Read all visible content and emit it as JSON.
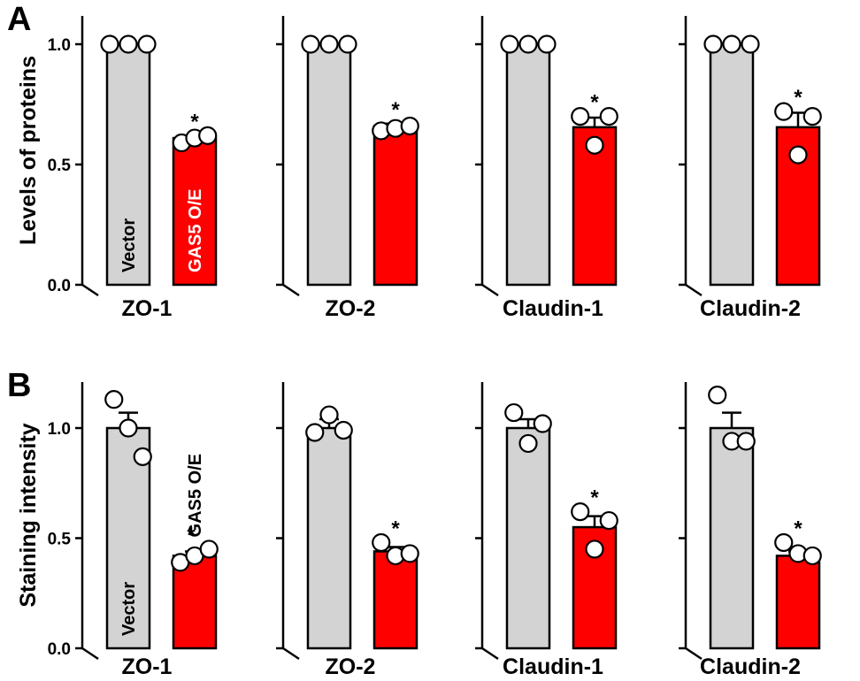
{
  "colors": {
    "vector": "#d3d3d3",
    "gas5": "#ff0000",
    "axis": "#000000"
  },
  "chart_data": [
    {
      "panel": "A",
      "type": "bar",
      "ylabel": "Levels of proteins",
      "ylim": [
        0,
        1.2
      ],
      "yticks": [
        0.0,
        0.5,
        1.0
      ],
      "yticklabels": [
        "0.0",
        "0.5",
        "1.0"
      ],
      "bar_labels": {
        "vector": "Vector",
        "gas5": "GAS5 O/E"
      },
      "subplots": [
        {
          "title": "ZO-1",
          "series": [
            {
              "name": "Vector",
              "value": 1.0,
              "error": 0,
              "points": [
                1.0,
                1.0,
                1.0
              ]
            },
            {
              "name": "GAS5 O/E",
              "value": 0.61,
              "error": 0.01,
              "points": [
                0.59,
                0.61,
                0.62
              ],
              "significant": true
            }
          ]
        },
        {
          "title": "ZO-2",
          "series": [
            {
              "name": "Vector",
              "value": 1.0,
              "error": 0,
              "points": [
                1.0,
                1.0,
                1.0
              ]
            },
            {
              "name": "GAS5 O/E",
              "value": 0.66,
              "error": 0.01,
              "points": [
                0.64,
                0.65,
                0.66
              ],
              "significant": true
            }
          ]
        },
        {
          "title": "Claudin-1",
          "series": [
            {
              "name": "Vector",
              "value": 1.0,
              "error": 0,
              "points": [
                1.0,
                1.0,
                1.0
              ]
            },
            {
              "name": "GAS5 O/E",
              "value": 0.655,
              "error": 0.04,
              "points": [
                0.7,
                0.58,
                0.7
              ],
              "significant": true
            }
          ]
        },
        {
          "title": "Claudin-2",
          "series": [
            {
              "name": "Vector",
              "value": 1.0,
              "error": 0,
              "points": [
                1.0,
                1.0,
                1.0
              ]
            },
            {
              "name": "GAS5 O/E",
              "value": 0.655,
              "error": 0.06,
              "points": [
                0.72,
                0.54,
                0.7
              ],
              "significant": true
            }
          ]
        }
      ]
    },
    {
      "panel": "B",
      "type": "bar",
      "ylabel": "Staining intensity",
      "ylim": [
        0,
        1.2
      ],
      "yticks": [
        0.0,
        0.5,
        1.0
      ],
      "yticklabels": [
        "0.0",
        "0.5",
        "1.0"
      ],
      "bar_labels": {
        "vector": "Vector",
        "gas5": "GAS5 O/E"
      },
      "subplots": [
        {
          "title": "ZO-1",
          "series": [
            {
              "name": "Vector",
              "value": 1.0,
              "error": 0.07,
              "points": [
                1.13,
                1.0,
                0.87
              ]
            },
            {
              "name": "GAS5 O/E",
              "value": 0.42,
              "error": 0.02,
              "points": [
                0.39,
                0.42,
                0.45
              ],
              "significant": true
            }
          ]
        },
        {
          "title": "ZO-2",
          "series": [
            {
              "name": "Vector",
              "value": 1.0,
              "error": 0.04,
              "points": [
                0.98,
                1.06,
                0.99
              ]
            },
            {
              "name": "GAS5 O/E",
              "value": 0.44,
              "error": 0.02,
              "points": [
                0.48,
                0.42,
                0.43
              ],
              "significant": true
            }
          ]
        },
        {
          "title": "Claudin-1",
          "series": [
            {
              "name": "Vector",
              "value": 1.0,
              "error": 0.04,
              "points": [
                1.07,
                0.93,
                1.02
              ]
            },
            {
              "name": "GAS5 O/E",
              "value": 0.55,
              "error": 0.05,
              "points": [
                0.62,
                0.45,
                0.58
              ],
              "significant": true
            }
          ]
        },
        {
          "title": "Claudin-2",
          "series": [
            {
              "name": "Vector",
              "value": 1.0,
              "error": 0.07,
              "points": [
                1.15,
                0.94,
                0.94
              ]
            },
            {
              "name": "GAS5 O/E",
              "value": 0.42,
              "error": 0.02,
              "points": [
                0.48,
                0.43,
                0.42
              ],
              "significant": true
            }
          ]
        }
      ]
    }
  ]
}
